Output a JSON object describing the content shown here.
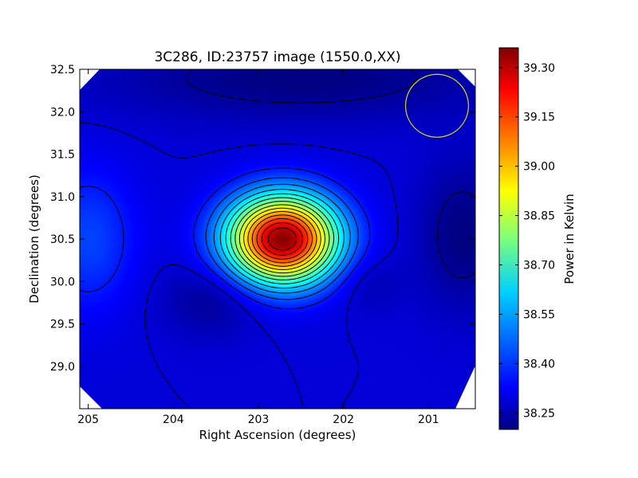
{
  "chart_data": {
    "type": "heatmap",
    "title": "3C286, ID:23757 image (1550.0,XX)",
    "xlabel": "Right Ascension (degrees)",
    "ylabel": "Declination (degrees)",
    "xlim": [
      205.1,
      200.45
    ],
    "ylim": [
      28.5,
      32.5
    ],
    "x_ticks": [
      205,
      204,
      203,
      202,
      201
    ],
    "x_tick_labels": [
      "205",
      "204",
      "203",
      "202",
      "201"
    ],
    "y_ticks": [
      29.0,
      29.5,
      30.0,
      30.5,
      31.0,
      31.5,
      32.0,
      32.5
    ],
    "y_tick_labels": [
      "29.0",
      "29.5",
      "30.0",
      "30.5",
      "31.0",
      "31.5",
      "32.0",
      "32.5"
    ],
    "colorbar": {
      "label": "Power in Kelvin",
      "range": [
        38.2,
        39.36
      ],
      "ticks": [
        38.25,
        38.4,
        38.55,
        38.7,
        38.85,
        39.0,
        39.15,
        39.3
      ],
      "tick_labels": [
        "38.25",
        "38.40",
        "38.55",
        "38.70",
        "38.85",
        "39.00",
        "39.15",
        "39.30"
      ],
      "colormap": "jet"
    },
    "background_level": 38.3,
    "features": [
      {
        "name": "peak",
        "ra": 202.72,
        "dec": 30.5,
        "value": 39.35,
        "sigma_ra": 0.45,
        "sigma_dec": 0.36
      },
      {
        "name": "low",
        "ra": 203.55,
        "dec": 29.8,
        "value": 38.22,
        "sigma_ra": 0.4,
        "sigma_dec": 0.3
      },
      {
        "name": "low",
        "ra": 201.75,
        "dec": 30.0,
        "value": 38.25,
        "sigma_ra": 0.3,
        "sigma_dec": 0.25
      },
      {
        "name": "low",
        "ra": 202.5,
        "dec": 32.4,
        "value": 38.2,
        "sigma_ra": 1.6,
        "sigma_dec": 0.35
      },
      {
        "name": "low",
        "ra": 200.6,
        "dec": 30.55,
        "value": 38.2,
        "sigma_ra": 0.35,
        "sigma_dec": 0.6
      },
      {
        "name": "high",
        "ra": 205.0,
        "dec": 30.5,
        "value": 38.42,
        "sigma_ra": 0.4,
        "sigma_dec": 0.6
      }
    ],
    "beam_circle": {
      "ra": 200.9,
      "dec": 32.07,
      "radius_deg": 0.37,
      "color": "#c8c820"
    },
    "contour_color": "#000000",
    "grid": false
  }
}
